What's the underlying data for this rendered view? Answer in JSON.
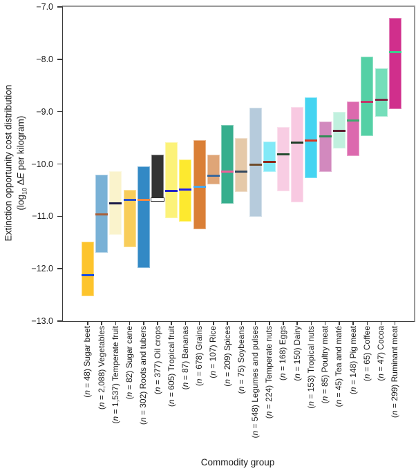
{
  "figure": {
    "y_axis": {
      "title_line1": "Extinction opportunity cost distribution",
      "title_line2_html": "(log<sub>10</sub> Δ<i>E</i> per kilogram)"
    },
    "x_axis": {
      "title": "Commodity group"
    }
  },
  "chart_data": {
    "type": "bar",
    "style": "floating-range-bars-with-median-line",
    "title": "",
    "xlabel": "Commodity group",
    "ylabel": "Extinction opportunity cost distribution (log10 ΔE per kilogram)",
    "ylim": [
      -13.0,
      -7.0
    ],
    "grid": false,
    "legend": false,
    "yticks": [
      {
        "value": -7.0,
        "label": "−7.0"
      },
      {
        "value": -8.0,
        "label": "−8.0"
      },
      {
        "value": -9.0,
        "label": "−9.0"
      },
      {
        "value": -10.0,
        "label": "−10.0"
      },
      {
        "value": -11.0,
        "label": "−11.0"
      },
      {
        "value": -12.0,
        "label": "−12.0"
      },
      {
        "value": -13.0,
        "label": "−13.0"
      }
    ],
    "bars": [
      {
        "name": "Sugar beet",
        "n": "48",
        "label": "(n = 48) Sugar beet",
        "label_html": "(<i>n</i> = 48) Sugar beet",
        "min": -12.53,
        "max": -11.48,
        "median": -12.12,
        "color": "#fdc42c",
        "median_color": "#1c4fe0"
      },
      {
        "name": "Vegetables",
        "n": "2,088",
        "label": "(n = 2,088) Vegetables",
        "label_html": "(<i>n</i> = 2,088) Vegetables",
        "min": -11.7,
        "max": -10.21,
        "median": -10.96,
        "color": "#79b1d6",
        "median_color": "#a9603a"
      },
      {
        "name": "Temperate fruit",
        "n": "1,537",
        "label": "(n = 1,537) Temperate fruit",
        "label_html": "(<i>n</i> = 1,537) Temperate fruit",
        "min": -11.35,
        "max": -10.14,
        "median": -10.75,
        "color": "#faf3cc",
        "median_color": "#191945"
      },
      {
        "name": "Sugar cane",
        "n": "82",
        "label": "(n = 82) Sugar cane",
        "label_html": "(<i>n</i> = 82) Sugar cane",
        "min": -11.59,
        "max": -10.49,
        "median": -10.69,
        "color": "#f8cd5a",
        "median_color": "#2b50c8"
      },
      {
        "name": "Roots and tubers",
        "n": "302",
        "label": "(n = 302) Roots and tubers",
        "label_html": "(<i>n</i> = 302) Roots and tubers",
        "min": -11.99,
        "max": -10.04,
        "median": -10.68,
        "color": "#3389c5",
        "median_color": "#f08a44"
      },
      {
        "name": "Oil crops",
        "n": "377",
        "label": "(n = 377) Oil crops",
        "label_html": "(<i>n</i> = 377) Oil crops",
        "min": -10.72,
        "max": -9.82,
        "median": -10.66,
        "color": "#333333",
        "median_color": "#ffffff",
        "median_outlined": true
      },
      {
        "name": "Tropical fruit",
        "n": "605",
        "label": "(n = 605) Tropical fruit",
        "label_html": "(<i>n</i> = 605) Tropical fruit",
        "min": -11.04,
        "max": -9.59,
        "median": -10.51,
        "color": "#fcf279",
        "median_color": "#2424c4"
      },
      {
        "name": "Bananas",
        "n": "87",
        "label": "(n = 87) Bananas",
        "label_html": "(<i>n</i> = 87) Bananas",
        "min": -11.1,
        "max": -9.92,
        "median": -10.49,
        "color": "#fde92f",
        "median_color": "#1d1dee"
      },
      {
        "name": "Grains",
        "n": "678",
        "label": "(n = 678) Grains",
        "label_html": "(<i>n</i> = 678) Grains",
        "min": -11.24,
        "max": -9.54,
        "median": -10.43,
        "color": "#da7f36",
        "median_color": "#47a9f0"
      },
      {
        "name": "Rice",
        "n": "107",
        "label": "(n = 107) Rice",
        "label_html": "(<i>n</i> = 107) Rice",
        "min": -10.39,
        "max": -9.82,
        "median": -10.22,
        "color": "#dfa577",
        "median_color": "#3a689c"
      },
      {
        "name": "Spices",
        "n": "209",
        "label": "(n = 209) Spices",
        "label_html": "(<i>n</i> = 209) Spices",
        "min": -10.76,
        "max": -9.26,
        "median": -10.14,
        "color": "#36ae8d",
        "median_color": "#f0609a"
      },
      {
        "name": "Soybeans",
        "n": "75",
        "label": "(n = 75) Soybeans",
        "label_html": "(<i>n</i> = 75) Soybeans",
        "min": -10.54,
        "max": -9.5,
        "median": -10.14,
        "color": "#e5c9a9",
        "median_color": "#33485f"
      },
      {
        "name": "Legumes and pulses",
        "n": "548",
        "label": "(n = 548) Legumes and pulses",
        "label_html": "(<i>n</i> = 548) Legumes and pulses",
        "min": -11.01,
        "max": -8.93,
        "median": -10.01,
        "color": "#b6cbdc",
        "median_color": "#6f4b2a"
      },
      {
        "name": "Temperate nuts",
        "n": "224",
        "label": "(n = 224) Temperate nuts",
        "label_html": "(<i>n</i> = 224) Temperate nuts",
        "min": -10.15,
        "max": -9.57,
        "median": -9.96,
        "color": "#82e9f7",
        "median_color": "#8e2a1c"
      },
      {
        "name": "Eggs",
        "n": "168",
        "label": "(n = 168) Eggs",
        "label_html": "(<i>n</i> = 168) Eggs",
        "min": -10.52,
        "max": -9.3,
        "median": -9.82,
        "color": "#f8cde3",
        "median_color": "#254c30"
      },
      {
        "name": "Dairy",
        "n": "150",
        "label": "(n = 150) Dairy",
        "label_html": "(<i>n</i> = 150) Dairy",
        "min": -10.73,
        "max": -8.91,
        "median": -9.59,
        "color": "#f8c9e1",
        "median_color": "#1f3d27"
      },
      {
        "name": "Tropical nuts",
        "n": "153",
        "label": "(n = 153) Tropical nuts",
        "label_html": "(<i>n</i> = 153) Tropical nuts",
        "min": -10.27,
        "max": -8.73,
        "median": -9.55,
        "color": "#44d4f1",
        "median_color": "#d93422"
      },
      {
        "name": "Poultry meat",
        "n": "85",
        "label": "(n = 85) Poultry meat",
        "label_html": "(<i>n</i> = 85) Poultry meat",
        "min": -10.15,
        "max": -9.19,
        "median": -9.47,
        "color": "#d289be",
        "median_color": "#2f8c55"
      },
      {
        "name": "Tea and maté",
        "n": "45",
        "label": "(n = 45) Tea and maté",
        "label_html": "(<i>n</i> = 45) Tea and maté",
        "min": -9.7,
        "max": -9.0,
        "median": -9.37,
        "color": "#c0f0de",
        "median_color": "#5a2030"
      },
      {
        "name": "Pig meat",
        "n": "148",
        "label": "(n = 148) Pig meat",
        "label_html": "(<i>n</i> = 148) Pig meat",
        "min": -9.85,
        "max": -8.81,
        "median": -9.17,
        "color": "#dc69ae",
        "median_color": "#3cab6e"
      },
      {
        "name": "Coffee",
        "n": "65",
        "label": "(n = 65) Coffee",
        "label_html": "(<i>n</i> = 65) Coffee",
        "min": -9.46,
        "max": -7.95,
        "median": -8.81,
        "color": "#54d0a5",
        "median_color": "#c23568"
      },
      {
        "name": "Cocoa",
        "n": "47",
        "label": "(n = 47) Cocoa",
        "label_html": "(<i>n</i> = 47) Cocoa",
        "min": -9.1,
        "max": -8.17,
        "median": -8.78,
        "color": "#74deba",
        "median_color": "#7e2845"
      },
      {
        "name": "Ruminant meat",
        "n": "299",
        "label": "(n = 299) Ruminant meat",
        "label_html": "(<i>n</i> = 299) Ruminant meat",
        "min": -8.95,
        "max": -7.21,
        "median": -7.87,
        "color": "#d02f8c",
        "median_color": "#3ecd8e"
      }
    ]
  }
}
